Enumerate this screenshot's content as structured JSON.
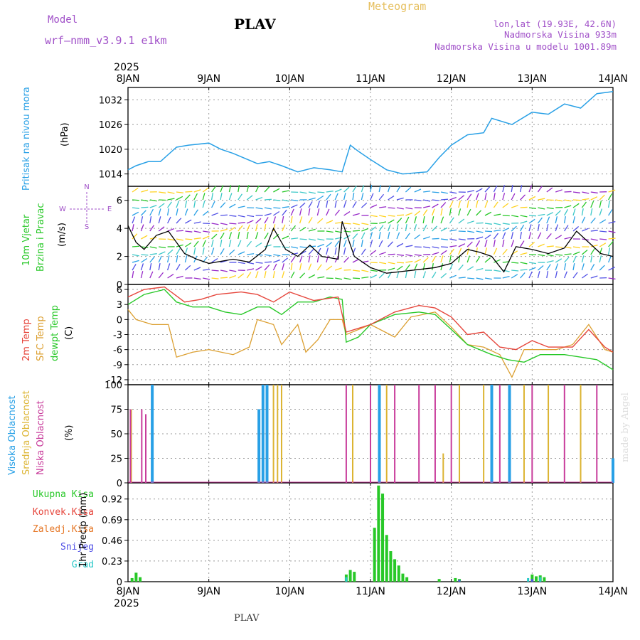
{
  "header": {
    "station": "PLAV",
    "model_label": "Model",
    "model_name": "wrf—nmm_v3.9.1  e1km",
    "meteogram_label": "Meteogram",
    "lonlat": "lon,lat (19.93E, 42.6N)",
    "altitude": "Nadmorska Visina 933m",
    "model_altitude": "Nadmorska Visina u modelu 1001.89m",
    "credit": "made by Angel",
    "bottom_station": "PLAV"
  },
  "panel_labels": {
    "pressure": [
      "Pritisak na nivou mora",
      "(hPa)"
    ],
    "wind": [
      "10m Vjetar",
      "Brzina i Pravac",
      "(m/s)"
    ],
    "wind_compass": [
      "N",
      "W",
      "E",
      "S"
    ],
    "temperature": [
      "2m Temp",
      "SFC Temp",
      "dewpt Temp",
      "(C)"
    ],
    "cloud": [
      "Visoka Oblacnost",
      "Srednja Oblacnost",
      "Niska Oblacnost",
      "(%)"
    ],
    "precip_legend": [
      "Ukupna Kisa",
      "Konvek.Kisa",
      "Zaledj.Kisa",
      "Snijeg",
      "Grad"
    ],
    "precip_axis": "1hr Precip (mm)"
  },
  "colors": {
    "pressure": "#28a0e6",
    "temp2m": "#e6463c",
    "sfc": "#dca032",
    "dewpt": "#28c828",
    "high_cloud": "#28a0e6",
    "mid_cloud": "#dcb432",
    "low_cloud": "#c83c9b",
    "total_rain": "#28c828",
    "conv_rain": "#e6463c",
    "freezing_rain": "#e67828",
    "snow": "#5050e6",
    "graupel": "#28c8c8",
    "wind_label": "#28c828",
    "purple_text": "#a050c8"
  },
  "chart_data": {
    "type": "line",
    "x_axis": {
      "labels": [
        "8JAN",
        "9JAN",
        "10JAN",
        "11JAN",
        "12JAN",
        "13JAN",
        "14JAN"
      ],
      "year": "2025",
      "range_days": [
        0,
        6
      ]
    },
    "pressure": {
      "ylim": [
        1011,
        1035
      ],
      "yticks": [
        "1014",
        "1020",
        "1026",
        "1032"
      ],
      "x": [
        0,
        0.1,
        0.25,
        0.4,
        0.6,
        0.75,
        1.0,
        1.15,
        1.3,
        1.6,
        1.75,
        1.9,
        2.1,
        2.3,
        2.5,
        2.65,
        2.75,
        2.85,
        3.0,
        3.2,
        3.4,
        3.7,
        3.85,
        4.0,
        4.2,
        4.4,
        4.5,
        4.75,
        5.0,
        5.2,
        5.4,
        5.6,
        5.8,
        6.0
      ],
      "y": [
        1015,
        1016,
        1017,
        1017,
        1020.5,
        1021,
        1021.5,
        1020,
        1019,
        1016.5,
        1017,
        1016,
        1014.5,
        1015.5,
        1015,
        1014.5,
        1021,
        1019.5,
        1017.5,
        1015,
        1014,
        1014.5,
        1018,
        1021,
        1023.5,
        1024,
        1027.5,
        1026,
        1029,
        1028.5,
        1031,
        1030,
        1033.5,
        1034
      ]
    },
    "wind": {
      "ylim": [
        0,
        7
      ],
      "yticks": [
        "0",
        "2",
        "4",
        "6"
      ],
      "x": [
        0,
        0.1,
        0.2,
        0.35,
        0.5,
        0.7,
        0.85,
        1.0,
        1.3,
        1.5,
        1.7,
        1.8,
        1.95,
        2.1,
        2.25,
        2.4,
        2.6,
        2.65,
        2.8,
        3.0,
        3.2,
        3.5,
        3.8,
        4.0,
        4.2,
        4.35,
        4.5,
        4.65,
        4.8,
        5.0,
        5.2,
        5.4,
        5.55,
        5.7,
        5.85,
        6.0
      ],
      "y": [
        4.2,
        3.0,
        2.5,
        3.5,
        3.8,
        2.2,
        1.8,
        1.5,
        1.8,
        1.6,
        2.5,
        4.0,
        2.5,
        2.0,
        2.8,
        2.0,
        1.8,
        4.5,
        2.0,
        1.2,
        0.8,
        1.0,
        1.2,
        1.5,
        2.5,
        2.3,
        2.0,
        0.9,
        2.7,
        2.5,
        2.2,
        2.6,
        3.8,
        3.0,
        2.2,
        2.0
      ]
    },
    "temperature": {
      "ylim": [
        -13,
        7
      ],
      "yticks": [
        "6",
        "3",
        "0",
        "-3",
        "-6",
        "-9",
        "-12"
      ],
      "t2m": {
        "name": "2m Temp",
        "x": [
          0,
          0.2,
          0.45,
          0.7,
          0.9,
          1.1,
          1.4,
          1.6,
          1.8,
          2.0,
          2.3,
          2.6,
          2.7,
          3.0,
          3.3,
          3.6,
          3.8,
          4.0,
          4.2,
          4.4,
          4.6,
          4.8,
          5.0,
          5.2,
          5.5,
          5.7,
          5.9,
          6.0
        ],
        "y": [
          4.5,
          6,
          6.5,
          3.5,
          4.0,
          5.0,
          5.5,
          5.0,
          3.5,
          5.5,
          3.8,
          4.5,
          -2.5,
          -1.0,
          1.5,
          2.8,
          2.3,
          0.5,
          -3.0,
          -2.5,
          -5.5,
          -6.0,
          -4.2,
          -5.5,
          -5.5,
          -2.0,
          -5.5,
          -6.5
        ]
      },
      "sfc": {
        "name": "SFC Temp",
        "x": [
          0,
          0.1,
          0.3,
          0.5,
          0.6,
          0.8,
          1.0,
          1.3,
          1.5,
          1.6,
          1.8,
          1.9,
          2.1,
          2.2,
          2.35,
          2.5,
          2.65,
          2.7,
          3.0,
          3.3,
          3.5,
          3.8,
          4.0,
          4.2,
          4.4,
          4.6,
          4.75,
          4.9,
          5.1,
          5.3,
          5.5,
          5.7,
          5.9,
          6.0
        ],
        "y": [
          2,
          0,
          -1,
          -1,
          -7.5,
          -6.5,
          -6.0,
          -7.0,
          -5.5,
          0,
          -1.0,
          -5.0,
          -1.0,
          -6.5,
          -4.0,
          0,
          0,
          -3.0,
          -1.0,
          -3.5,
          0.5,
          1.5,
          -1.5,
          -5.0,
          -5.5,
          -7.0,
          -11.5,
          -6.0,
          -6.0,
          -6.0,
          -5.0,
          -1.0,
          -6.0,
          -6.5
        ]
      },
      "dewpt": {
        "name": "dewpt Temp",
        "x": [
          0,
          0.2,
          0.45,
          0.6,
          0.8,
          1.0,
          1.2,
          1.4,
          1.6,
          1.75,
          1.9,
          2.1,
          2.3,
          2.5,
          2.65,
          2.7,
          2.85,
          3.0,
          3.3,
          3.6,
          3.8,
          4.0,
          4.2,
          4.5,
          4.7,
          4.9,
          5.1,
          5.4,
          5.6,
          5.8,
          6.0
        ],
        "y": [
          3,
          5,
          6,
          3.5,
          2.5,
          2.5,
          1.5,
          1.0,
          2.5,
          2.5,
          1.0,
          3.5,
          3.5,
          4.5,
          4.0,
          -4.5,
          -3.5,
          -1.0,
          1.0,
          1.5,
          1.0,
          -2.0,
          -5.0,
          -7.0,
          -8.0,
          -8.5,
          -7.0,
          -7.0,
          -7.5,
          -8.0,
          -10.0
        ]
      }
    },
    "cloud": {
      "ylim": [
        0,
        100
      ],
      "yticks": [
        "0",
        "25",
        "50",
        "75",
        "100"
      ],
      "high_bars": [
        [
          0.3,
          100
        ],
        [
          1.62,
          75
        ],
        [
          1.67,
          100
        ],
        [
          1.72,
          100
        ],
        [
          3.11,
          100
        ],
        [
          4.5,
          100
        ],
        [
          4.72,
          100
        ],
        [
          6.0,
          25
        ]
      ],
      "mid_bars": [
        [
          0.04,
          75
        ],
        [
          1.8,
          100
        ],
        [
          1.85,
          100
        ],
        [
          1.9,
          100
        ],
        [
          2.78,
          100
        ],
        [
          3.2,
          100
        ],
        [
          3.9,
          30
        ],
        [
          4.1,
          100
        ],
        [
          4.4,
          100
        ],
        [
          4.9,
          100
        ],
        [
          5.2,
          100
        ],
        [
          5.6,
          100
        ]
      ],
      "low_bars": [
        [
          0.03,
          75
        ],
        [
          0.17,
          75
        ],
        [
          0.22,
          70
        ],
        [
          2.7,
          100
        ],
        [
          3.0,
          100
        ],
        [
          3.3,
          100
        ],
        [
          3.6,
          100
        ],
        [
          3.8,
          100
        ],
        [
          4.0,
          100
        ],
        [
          4.6,
          100
        ],
        [
          5.0,
          100
        ],
        [
          5.4,
          100
        ],
        [
          5.8,
          100
        ]
      ]
    },
    "precip": {
      "ylim": [
        0,
        1.1
      ],
      "yticks": [
        "0",
        "0.23",
        "0.46",
        "0.69",
        "0.92"
      ],
      "total_rain": [
        [
          0.05,
          0.04
        ],
        [
          0.1,
          0.1
        ],
        [
          0.15,
          0.05
        ],
        [
          2.7,
          0.08
        ],
        [
          2.75,
          0.13
        ],
        [
          2.8,
          0.11
        ],
        [
          3.05,
          0.6
        ],
        [
          3.1,
          1.07
        ],
        [
          3.15,
          0.98
        ],
        [
          3.2,
          0.52
        ],
        [
          3.25,
          0.34
        ],
        [
          3.3,
          0.25
        ],
        [
          3.35,
          0.18
        ],
        [
          3.4,
          0.09
        ],
        [
          3.45,
          0.05
        ],
        [
          3.85,
          0.03
        ],
        [
          4.05,
          0.04
        ],
        [
          4.1,
          0.03
        ],
        [
          5.0,
          0.08
        ],
        [
          5.05,
          0.06
        ],
        [
          5.1,
          0.07
        ],
        [
          5.15,
          0.05
        ]
      ],
      "snow": [
        [
          4.1,
          0.02
        ],
        [
          5.0,
          0.03
        ]
      ],
      "graupel": [
        [
          2.7,
          0.05
        ],
        [
          4.95,
          0.04
        ],
        [
          5.1,
          0.05
        ]
      ]
    }
  }
}
